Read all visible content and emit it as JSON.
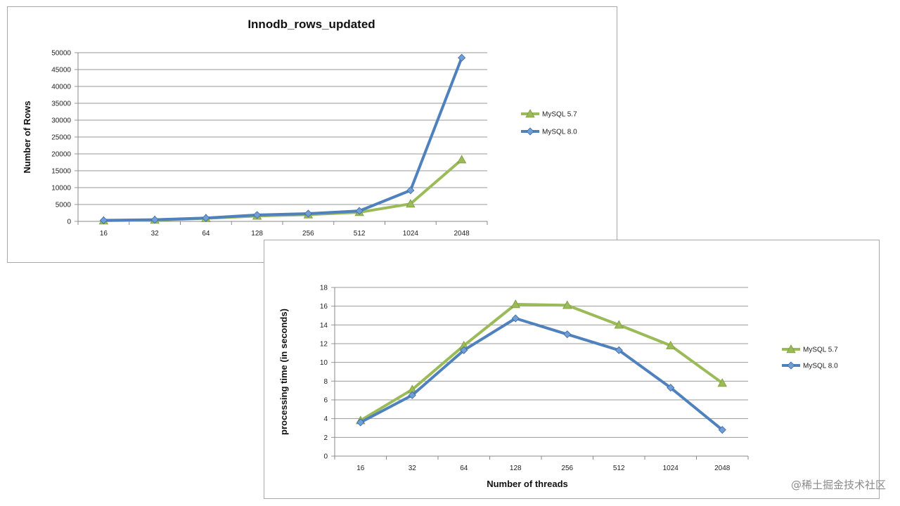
{
  "colors": {
    "mysql57": "#9bbb59",
    "mysql80": "#4f81bd",
    "grid": "#9a9a9a"
  },
  "watermark": "@稀土掘金技术社区",
  "chart_data": [
    {
      "type": "line",
      "title": "Innodb_rows_updated",
      "xlabel": "",
      "ylabel": "Number of Rows",
      "categories": [
        "16",
        "32",
        "64",
        "128",
        "256",
        "512",
        "1024",
        "2048"
      ],
      "ylim": [
        0,
        50000
      ],
      "yticks": [
        0,
        5000,
        10000,
        15000,
        20000,
        25000,
        30000,
        35000,
        40000,
        45000,
        50000
      ],
      "grid": true,
      "legend_position": "right",
      "series": [
        {
          "name": "MySQL 5.7",
          "marker": "triangle",
          "values": [
            200,
            400,
            900,
            1600,
            2000,
            2700,
            5200,
            18300
          ]
        },
        {
          "name": "MySQL 8.0",
          "marker": "diamond",
          "values": [
            300,
            500,
            1000,
            1900,
            2300,
            3100,
            9200,
            48500
          ]
        }
      ]
    },
    {
      "type": "line",
      "title": "",
      "xlabel": "Number of threads",
      "ylabel": "processing time (in seconds)",
      "categories": [
        "16",
        "32",
        "64",
        "128",
        "256",
        "512",
        "1024",
        "2048"
      ],
      "ylim": [
        0,
        18
      ],
      "yticks": [
        0,
        2,
        4,
        6,
        8,
        10,
        12,
        14,
        16,
        18
      ],
      "grid": true,
      "legend_position": "right",
      "series": [
        {
          "name": "MySQL 5.7",
          "marker": "triangle",
          "values": [
            3.8,
            7.1,
            11.8,
            16.2,
            16.1,
            14.0,
            11.8,
            7.8
          ]
        },
        {
          "name": "MySQL 8.0",
          "marker": "diamond",
          "values": [
            3.6,
            6.5,
            11.3,
            14.7,
            13.0,
            11.3,
            7.3,
            2.8
          ]
        }
      ]
    }
  ]
}
